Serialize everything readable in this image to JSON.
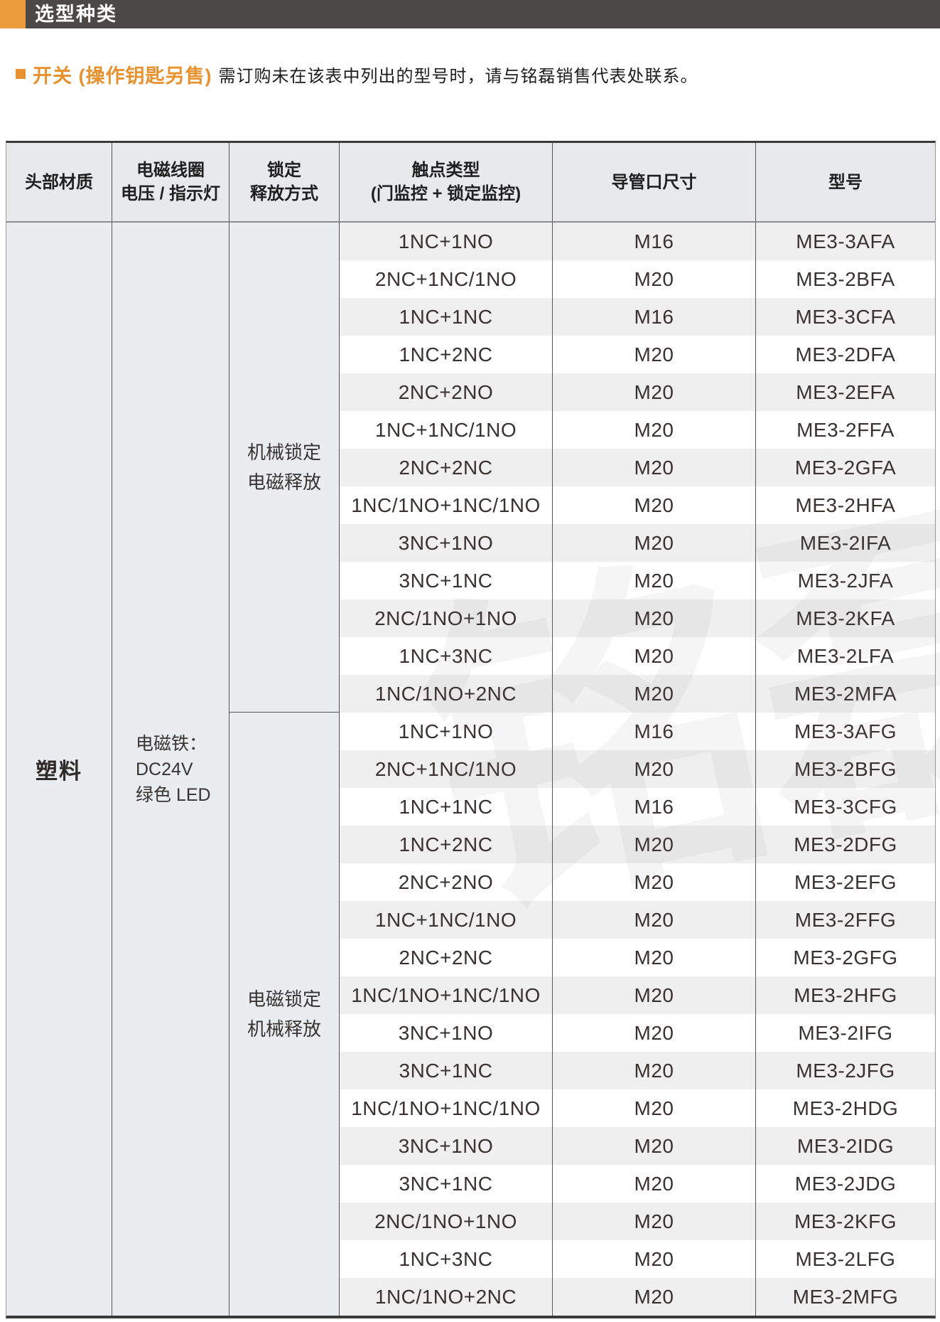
{
  "page_header": {
    "title": "选型种类"
  },
  "intro": {
    "product_label": "开关 (操作钥匙另售)",
    "note": "需订购未在该表中列出的型号时，请与铭磊销售代表处联系。"
  },
  "table": {
    "headers": [
      {
        "lines": [
          "头部材质"
        ]
      },
      {
        "lines": [
          "电磁线圈",
          "电压 / 指示灯"
        ]
      },
      {
        "lines": [
          "锁定",
          "释放方式"
        ]
      },
      {
        "lines": [
          "触点类型",
          "(门监控 + 锁定监控)"
        ]
      },
      {
        "lines": [
          "导管口尺寸"
        ]
      },
      {
        "lines": [
          "型号"
        ]
      }
    ],
    "head_material": "塑料",
    "coil_cell": {
      "lines": [
        "电磁铁：",
        "DC24V",
        "绿色 LED"
      ]
    },
    "groups": [
      {
        "lock_method": [
          "机械锁定",
          "电磁释放"
        ],
        "rows": [
          [
            "1NC+1NO",
            "M16",
            "ME3-3AFA"
          ],
          [
            "2NC+1NC/1NO",
            "M20",
            "ME3-2BFA"
          ],
          [
            "1NC+1NC",
            "M16",
            "ME3-3CFA"
          ],
          [
            "1NC+2NC",
            "M20",
            "ME3-2DFA"
          ],
          [
            "2NC+2NO",
            "M20",
            "ME3-2EFA"
          ],
          [
            "1NC+1NC/1NO",
            "M20",
            "ME3-2FFA"
          ],
          [
            "2NC+2NC",
            "M20",
            "ME3-2GFA"
          ],
          [
            "1NC/1NO+1NC/1NO",
            "M20",
            "ME3-2HFA"
          ],
          [
            "3NC+1NO",
            "M20",
            "ME3-2IFA"
          ],
          [
            "3NC+1NC",
            "M20",
            "ME3-2JFA"
          ],
          [
            "2NC/1NO+1NO",
            "M20",
            "ME3-2KFA"
          ],
          [
            "1NC+3NC",
            "M20",
            "ME3-2LFA"
          ],
          [
            "1NC/1NO+2NC",
            "M20",
            "ME3-2MFA"
          ]
        ]
      },
      {
        "lock_method": [
          "电磁锁定",
          "机械释放"
        ],
        "rows": [
          [
            "1NC+1NO",
            "M16",
            "ME3-3AFG"
          ],
          [
            "2NC+1NC/1NO",
            "M20",
            "ME3-2BFG"
          ],
          [
            "1NC+1NC",
            "M16",
            "ME3-3CFG"
          ],
          [
            "1NC+2NC",
            "M20",
            "ME3-2DFG"
          ],
          [
            "2NC+2NO",
            "M20",
            "ME3-2EFG"
          ],
          [
            "1NC+1NC/1NO",
            "M20",
            "ME3-2FFG"
          ],
          [
            "2NC+2NC",
            "M20",
            "ME3-2GFG"
          ],
          [
            "1NC/1NO+1NC/1NO",
            "M20",
            "ME3-2HFG"
          ],
          [
            "3NC+1NO",
            "M20",
            "ME3-2IFG"
          ],
          [
            "3NC+1NC",
            "M20",
            "ME3-2JFG"
          ],
          [
            "1NC/1NO+1NC/1NO",
            "M20",
            "ME3-2HDG"
          ],
          [
            "3NC+1NO",
            "M20",
            "ME3-2IDG"
          ],
          [
            "3NC+1NC",
            "M20",
            "ME3-2JDG"
          ],
          [
            "2NC/1NO+1NO",
            "M20",
            "ME3-2KFG"
          ],
          [
            "1NC+3NC",
            "M20",
            "ME3-2LFG"
          ],
          [
            "1NC/1NO+2NC",
            "M20",
            "ME3-2MFG"
          ]
        ]
      }
    ]
  },
  "watermark": {
    "text": "铭磊"
  },
  "colors": {
    "accent_orange": "#EC9B3D",
    "intro_orange": "#E8912F",
    "title_bar_bg": "#4B4846",
    "header_bg": "#E7E9EB",
    "merged_cell_bg": "#E9EDF0",
    "stripe_gray": "#EFEFEF",
    "border_dark": "#3B3B3B",
    "text_dark": "#383230"
  }
}
